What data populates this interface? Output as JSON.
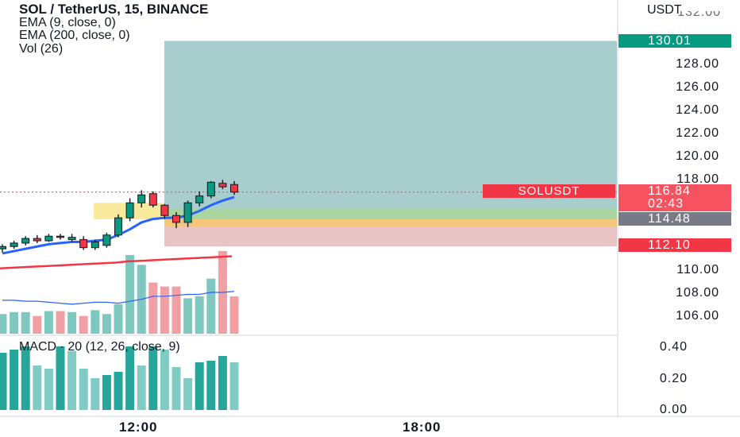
{
  "legend": {
    "title": "SOL / TetherUS, 15, BINANCE",
    "indicators": [
      "EMA (9, close, 0)",
      "EMA (200, close, 0)",
      "Vol (26)"
    ]
  },
  "macd_label": "MACD · 20 (12, 26, close, 9)",
  "price_axis": {
    "unit": "USDT",
    "top_clipped": "132.00",
    "ticks": [
      "128.00",
      "126.00",
      "124.00",
      "122.00",
      "120.00",
      "118.00",
      "110.00",
      "108.00",
      "106.00"
    ]
  },
  "macd_axis": {
    "ticks": [
      "0.40",
      "0.20",
      "0.00"
    ]
  },
  "time_axis": {
    "ticks": [
      "12:00",
      "18:00"
    ]
  },
  "badges": {
    "target": {
      "value": "130.01",
      "color": "#089981"
    },
    "last": {
      "value": "116.84",
      "countdown": "02:43",
      "color": "#f7525f"
    },
    "entry": {
      "value": "114.48",
      "color": "#787b86"
    },
    "stop": {
      "value": "112.10",
      "color": "#f23645"
    }
  },
  "symbol_badge": "SOLUSDT",
  "colors": {
    "up": "#089981",
    "down": "#f23645",
    "ema9": "#2962ff",
    "ema200": "#f23645",
    "profit_zone": "#a7cdcd",
    "loss_zone": "#e8c4c6"
  },
  "chart_data": {
    "type": "candlestick",
    "interval": "15",
    "candles": [
      {
        "o": 111.9,
        "h": 112.3,
        "l": 111.6,
        "c": 112.1
      },
      {
        "o": 112.1,
        "h": 112.6,
        "l": 111.9,
        "c": 112.4
      },
      {
        "o": 112.4,
        "h": 113.0,
        "l": 112.2,
        "c": 112.8
      },
      {
        "o": 112.8,
        "h": 113.1,
        "l": 112.4,
        "c": 112.6
      },
      {
        "o": 112.6,
        "h": 113.2,
        "l": 112.5,
        "c": 113.0
      },
      {
        "o": 113.0,
        "h": 113.2,
        "l": 112.7,
        "c": 112.9
      },
      {
        "o": 112.7,
        "h": 113.2,
        "l": 112.5,
        "c": 112.9
      },
      {
        "o": 112.7,
        "h": 113.0,
        "l": 111.8,
        "c": 112.0
      },
      {
        "o": 112.0,
        "h": 112.7,
        "l": 111.8,
        "c": 112.5
      },
      {
        "o": 112.2,
        "h": 113.3,
        "l": 112.0,
        "c": 113.1
      },
      {
        "o": 113.1,
        "h": 114.9,
        "l": 112.9,
        "c": 114.6
      },
      {
        "o": 114.6,
        "h": 116.3,
        "l": 114.3,
        "c": 115.9
      },
      {
        "o": 115.9,
        "h": 117.0,
        "l": 115.5,
        "c": 116.6
      },
      {
        "o": 116.7,
        "h": 116.9,
        "l": 115.5,
        "c": 115.7
      },
      {
        "o": 115.7,
        "h": 115.8,
        "l": 114.5,
        "c": 114.8
      },
      {
        "o": 114.8,
        "h": 115.1,
        "l": 113.7,
        "c": 114.2
      },
      {
        "o": 114.2,
        "h": 116.1,
        "l": 113.8,
        "c": 115.9
      },
      {
        "o": 115.9,
        "h": 116.9,
        "l": 115.6,
        "c": 116.5
      },
      {
        "o": 116.5,
        "h": 117.8,
        "l": 116.3,
        "c": 117.7
      },
      {
        "o": 117.6,
        "h": 117.9,
        "l": 117.1,
        "c": 117.3
      },
      {
        "o": 117.5,
        "h": 117.8,
        "l": 116.6,
        "c": 116.84
      }
    ],
    "ema9": [
      111.5,
      111.7,
      111.9,
      112.1,
      112.3,
      112.4,
      112.5,
      112.5,
      112.6,
      112.7,
      113.1,
      113.6,
      114.2,
      114.5,
      114.6,
      114.6,
      114.8,
      115.2,
      115.7,
      116.1,
      116.4
    ],
    "ema200": [
      110.2,
      110.25,
      110.3,
      110.35,
      110.4,
      110.45,
      110.5,
      110.55,
      110.6,
      110.65,
      110.7,
      110.8,
      110.85,
      110.9,
      110.95,
      111.0,
      111.05,
      111.1,
      111.15,
      111.2,
      111.25
    ],
    "volume": [
      20,
      22,
      22,
      18,
      23,
      23,
      22,
      18,
      24,
      20,
      30,
      80,
      70,
      52,
      48,
      48,
      36,
      38,
      56,
      84,
      38
    ],
    "volume_ma": [
      34,
      34,
      33,
      33,
      32,
      31,
      30,
      31,
      32,
      32,
      31,
      33,
      35,
      38,
      38,
      39,
      40,
      40,
      42,
      42,
      43
    ],
    "macd_hist": [
      0.36,
      0.38,
      0.4,
      0.28,
      0.26,
      0.4,
      0.37,
      0.26,
      0.2,
      0.22,
      0.24,
      0.4,
      0.28,
      0.4,
      0.38,
      0.27,
      0.2,
      0.3,
      0.31,
      0.34,
      0.3
    ],
    "position": {
      "target": 130.01,
      "entry": 114.48,
      "stop": 112.1
    }
  }
}
